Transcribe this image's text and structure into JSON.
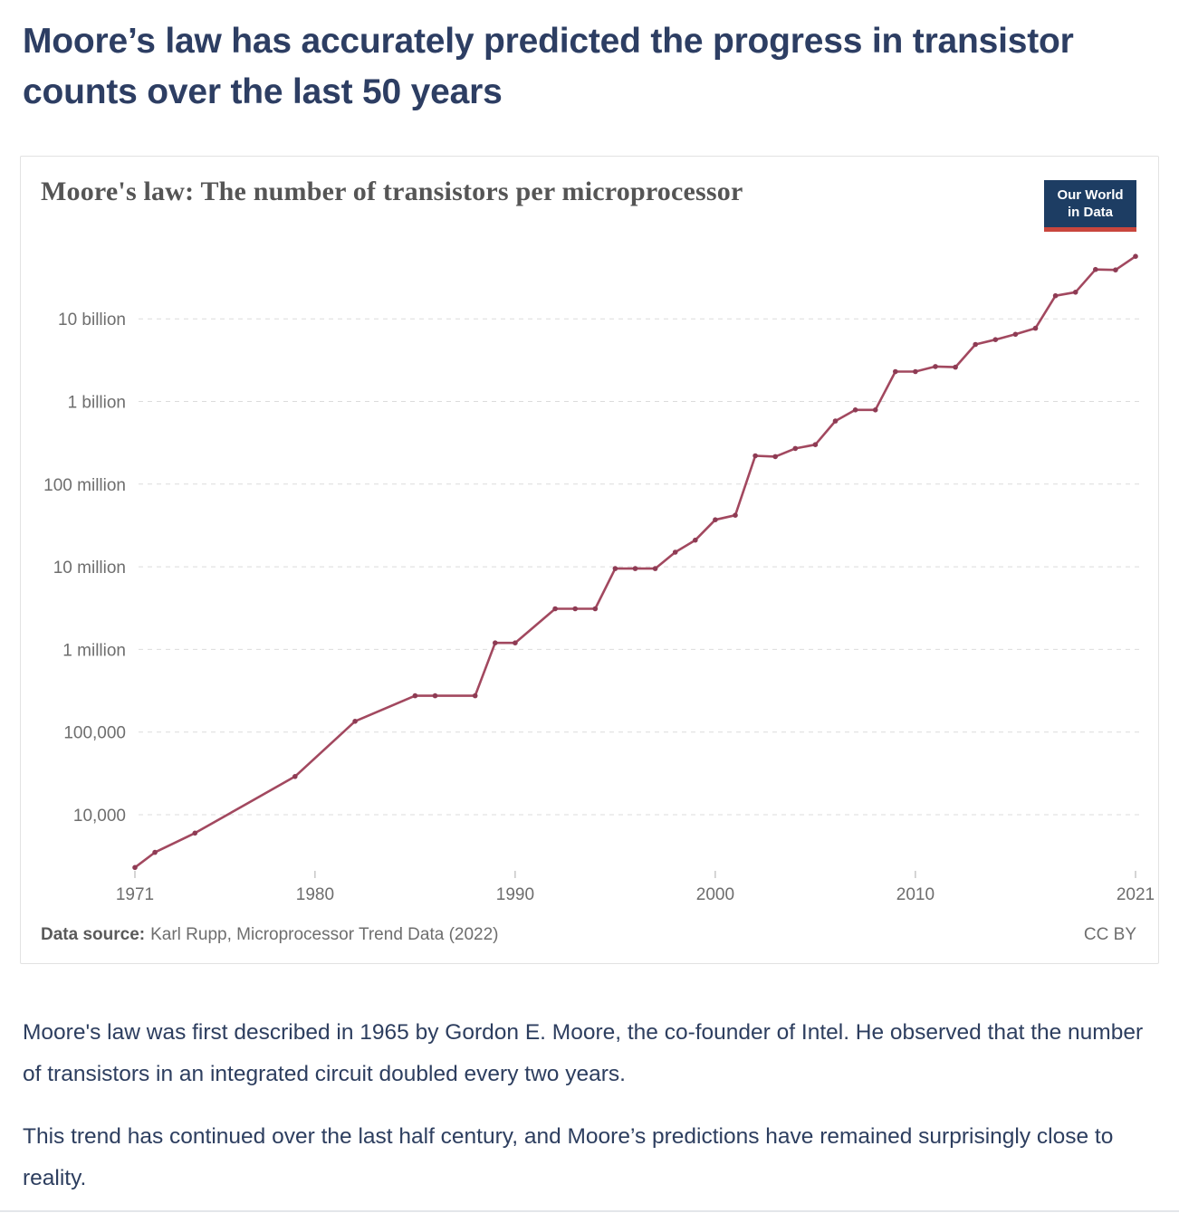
{
  "page": {
    "heading": "Moore’s law has accurately predicted the progress in transistor counts over the last 50 years",
    "paragraph1": "Moore's law was first described in 1965 by Gordon E. Moore, the co-founder of Intel. He observed that the number of transistors in an integrated circuit doubled every two years.",
    "paragraph2": "This trend has continued over the last half century, and Moore’s predictions have remained surprisingly close to reality."
  },
  "chart": {
    "title": "Moore's law: The number of transistors per microprocessor",
    "logo": {
      "line1": "Our World",
      "line2": "in Data",
      "bg_color": "#1d3d63",
      "strip_color": "#c9463d"
    },
    "footer": {
      "source_label": "Data source:",
      "source_text": "Karl Rupp, Microprocessor Trend Data (2022)",
      "license": "CC BY"
    }
  },
  "chart_data": {
    "type": "line",
    "title": "Moore's law: The number of transistors per microprocessor",
    "xlabel": "",
    "ylabel": "Transistors per microprocessor",
    "yscale": "log",
    "grid": "horizontal-dashed",
    "legend": "none",
    "x": [
      1971,
      1972,
      1974,
      1979,
      1982,
      1985,
      1986,
      1988,
      1989,
      1990,
      1992,
      1993,
      1994,
      1995,
      1996,
      1997,
      1998,
      1999,
      2000,
      2001,
      2002,
      2003,
      2004,
      2005,
      2006,
      2007,
      2008,
      2009,
      2010,
      2011,
      2012,
      2013,
      2014,
      2015,
      2016,
      2017,
      2018,
      2019,
      2020,
      2021
    ],
    "values": [
      2300,
      3500,
      6000,
      29000,
      135000,
      275000,
      275000,
      275000,
      1200000,
      1200000,
      3100000,
      3100000,
      3100000,
      9500000,
      9500000,
      9500000,
      15000000,
      21000000,
      37000000,
      42000000,
      220000000,
      215000000,
      270000000,
      300000000,
      580000000,
      790000000,
      790000000,
      2300000000,
      2300000000,
      2650000000,
      2600000000,
      4900000000,
      5600000000,
      6500000000,
      7700000000,
      19000000000,
      21000000000,
      39500000000,
      39000000000,
      57000000000
    ],
    "x_ticks": [
      1971,
      1980,
      1990,
      2000,
      2010,
      2021
    ],
    "y_ticks": [
      {
        "value": 10000,
        "label": "10,000"
      },
      {
        "value": 100000,
        "label": "100,000"
      },
      {
        "value": 1000000,
        "label": "1 million"
      },
      {
        "value": 10000000,
        "label": "10 million"
      },
      {
        "value": 100000000,
        "label": "100 million"
      },
      {
        "value": 1000000000,
        "label": "1 billion"
      },
      {
        "value": 10000000000,
        "label": "10 billion"
      }
    ],
    "ylim": [
      2000,
      70000000000
    ],
    "xlim": [
      1971,
      2021
    ],
    "line_color": "#a2485f",
    "point_color": "#8e3b54",
    "grid_color": "#dcdcdc",
    "source": "Karl Rupp, Microprocessor Trend Data (2022)",
    "license": "CC BY"
  }
}
